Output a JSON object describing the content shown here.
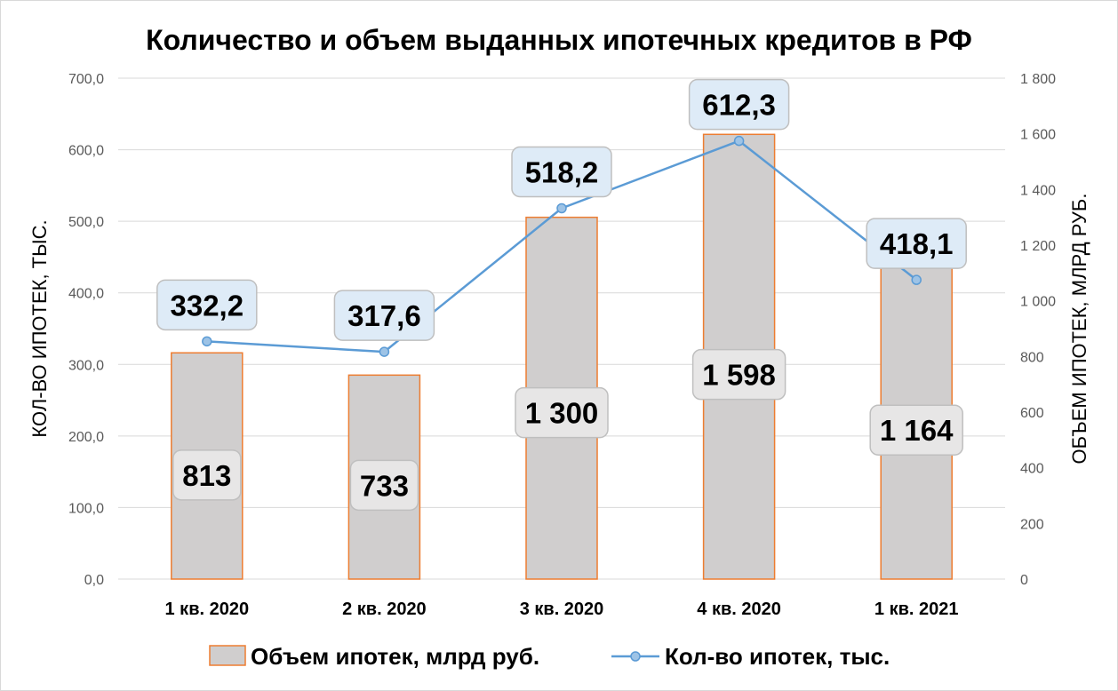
{
  "chart_data": {
    "type": "bar",
    "title": "Количество и объем выданных ипотечных кредитов в РФ",
    "categories": [
      "1 кв. 2020",
      "2 кв. 2020",
      "3 кв. 2020",
      "4 кв. 2020",
      "1 кв. 2021"
    ],
    "series": [
      {
        "name": "Объем ипотек, млрд руб.",
        "type": "bar",
        "axis": "right",
        "values": [
          813,
          733,
          1300,
          1598,
          1164
        ],
        "labels": [
          "813",
          "733",
          "1 300",
          "1 598",
          "1 164"
        ],
        "color": "#d0cece",
        "border_color": "#ed7d31"
      },
      {
        "name": "Кол-во ипотек, тыс.",
        "type": "line",
        "axis": "left",
        "values": [
          332.2,
          317.6,
          518.2,
          612.3,
          418.1
        ],
        "labels": [
          "332,2",
          "317,6",
          "518,2",
          "612,3",
          "418,1"
        ],
        "color": "#5b9bd5"
      }
    ],
    "y_left": {
      "label": "КОЛ-ВО ИПОТЕК, ТЫС.",
      "range": [
        0,
        700
      ],
      "ticks": [
        0,
        100,
        200,
        300,
        400,
        500,
        600,
        700
      ],
      "tick_labels": [
        "0,0",
        "100,0",
        "200,0",
        "300,0",
        "400,0",
        "500,0",
        "600,0",
        "700,0"
      ]
    },
    "y_right": {
      "label": "ОБЪЕМ ИПОТЕК, МЛРД РУБ.",
      "range": [
        0,
        1800
      ],
      "ticks": [
        0,
        200,
        400,
        600,
        800,
        1000,
        1200,
        1400,
        1600,
        1800
      ],
      "tick_labels": [
        "0",
        "200",
        "400",
        "600",
        "800",
        "1 000",
        "1 200",
        "1 400",
        "1 600",
        "1 800"
      ]
    },
    "grid": true,
    "legend_position": "bottom",
    "colors": {
      "bar_fill": "#d0cece",
      "bar_border": "#ed7d31",
      "line": "#5b9bd5",
      "line_label_fill": "#deebf7",
      "bar_label_fill": "#e7e6e6",
      "grid": "#d9d9d9",
      "frame": "#d9d9d9"
    }
  }
}
